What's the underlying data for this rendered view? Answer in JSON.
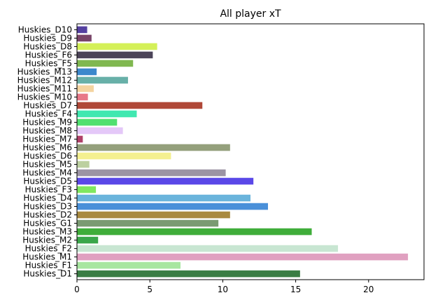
{
  "chart_data": {
    "type": "bar",
    "orientation": "horizontal",
    "title": "All player xT",
    "xlabel": "",
    "ylabel": "",
    "xlim": [
      0,
      23.8
    ],
    "xticks": [
      0,
      5,
      10,
      15,
      20
    ],
    "grid": false,
    "legend": "none",
    "categories": [
      "Huskies_D1",
      "Huskies_F1",
      "Huskies_M1",
      "Huskies_F2",
      "Huskies_M2",
      "Huskies_M3",
      "Huskies_G1",
      "Huskies_D2",
      "Huskies_D3",
      "Huskies_D4",
      "Huskies_F3",
      "Huskies_D5",
      "Huskies_M4",
      "Huskies_M5",
      "Huskies_D6",
      "Huskies_M6",
      "Huskies_M7",
      "Huskies_M8",
      "Huskies_M9",
      "Huskies_F4",
      "Huskies_D7",
      "Huskies_M10",
      "Huskies_M11",
      "Huskies_M12",
      "Huskies_M13",
      "Huskies_F5",
      "Huskies_F6",
      "Huskies_D8",
      "Huskies_D9",
      "Huskies_D10"
    ],
    "values": [
      15.3,
      7.1,
      22.7,
      17.9,
      1.45,
      16.1,
      9.7,
      10.5,
      13.1,
      11.9,
      1.3,
      12.1,
      10.2,
      0.85,
      6.45,
      10.5,
      0.4,
      3.15,
      2.75,
      4.1,
      8.6,
      0.75,
      1.15,
      3.5,
      1.35,
      3.85,
      5.2,
      5.5,
      1.0,
      0.7
    ],
    "colors": [
      "#3a7d44",
      "#a8e6a0",
      "#e0a0c0",
      "#c8e6d2",
      "#3aa64a",
      "#3fad3a",
      "#7a9a72",
      "#a88a40",
      "#4a90d9",
      "#6ab4dc",
      "#80e860",
      "#5a48e8",
      "#9c94a4",
      "#bcd0a0",
      "#f4f090",
      "#94a07c",
      "#b04068",
      "#e4c8f8",
      "#50e070",
      "#40e8b0",
      "#b04838",
      "#e87888",
      "#f4d4a0",
      "#68b0a8",
      "#3c88cc",
      "#80b850",
      "#4c4458",
      "#d4f058",
      "#784468",
      "#5440a0"
    ]
  }
}
